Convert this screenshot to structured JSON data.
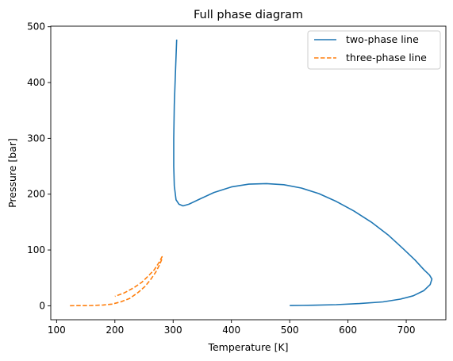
{
  "chart_data": {
    "type": "line",
    "title": "Full phase diagram",
    "xlabel": "Temperature [K]",
    "ylabel": "Pressure [bar]",
    "xlim": [
      90,
      768
    ],
    "ylim": [
      -25,
      501
    ],
    "xticks": [
      100,
      200,
      300,
      400,
      500,
      600,
      700
    ],
    "yticks": [
      0,
      100,
      200,
      300,
      400,
      500
    ],
    "grid": false,
    "legend_position": "top-right",
    "series": [
      {
        "name": "two-phase line",
        "style": "solid",
        "color": "#1f77b4",
        "x": [
          306,
          304,
          302,
          301,
          301,
          302,
          305,
          310,
          317,
          327,
          345,
          370,
          400,
          430,
          460,
          490,
          520,
          550,
          580,
          610,
          640,
          670,
          695,
          715,
          730,
          740,
          744,
          741,
          730,
          712,
          690,
          660,
          620,
          580,
          540,
          500
        ],
        "y": [
          477,
          420,
          360,
          300,
          250,
          215,
          190,
          182,
          179,
          182,
          191,
          203,
          213,
          218,
          219,
          217,
          211,
          201,
          187,
          170,
          150,
          126,
          102,
          82,
          65,
          55,
          48,
          38,
          27,
          18,
          12,
          7,
          4,
          2,
          1,
          0.5
        ]
      },
      {
        "name": "three-phase line",
        "style": "dashed",
        "color": "#ff7f0e",
        "x": [
          123,
          140,
          160,
          180,
          195,
          210,
          225,
          240,
          252,
          262,
          270,
          276,
          280,
          281,
          276,
          268,
          258,
          246,
          232,
          216,
          200
        ],
        "y": [
          0.2,
          0.3,
          0.5,
          1.5,
          3,
          7,
          13,
          24,
          35,
          48,
          60,
          72,
          82,
          88,
          78,
          65,
          54,
          42,
          32,
          23,
          17
        ]
      }
    ]
  }
}
